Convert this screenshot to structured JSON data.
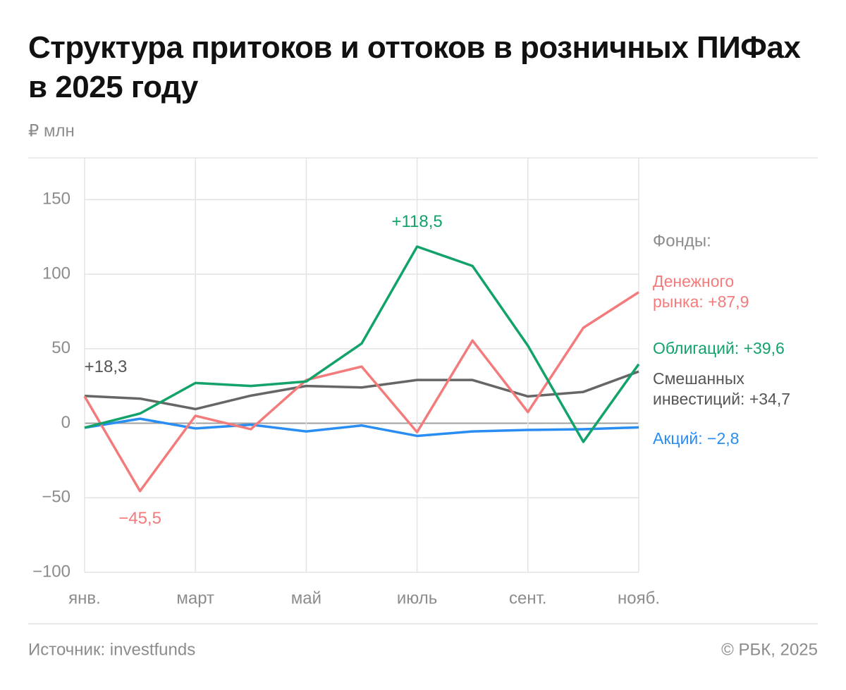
{
  "chart_data": {
    "type": "line",
    "title": "Структура притоков и оттоков в розничных ПИФах в 2025 году",
    "y_label": "₽ млн",
    "source": "Источник: investfunds",
    "copyright": "© РБК, 2025",
    "legend_title": "Фонды:",
    "categories": [
      "янв.",
      null,
      "март",
      null,
      "май",
      null,
      "июль",
      null,
      "сент.",
      null,
      "нояб."
    ],
    "ylim": [
      -100,
      178
    ],
    "yticks": [
      {
        "value": -100,
        "label": "−100"
      },
      {
        "value": -50,
        "label": "−50"
      },
      0,
      50,
      100,
      150
    ],
    "grid": true,
    "series": [
      {
        "name": "Денежного\nрынка: +87,9",
        "color": "#f47b7b",
        "values": [
          18,
          -45.5,
          5,
          -4,
          29,
          38,
          -6,
          55.5,
          7.5,
          64,
          87.9
        ],
        "value_labels": [
          null,
          "−45,5",
          null,
          null,
          null,
          null,
          null,
          null,
          null,
          null,
          null
        ]
      },
      {
        "name": "Облигаций: +39,6",
        "color": "#12a26a",
        "values": [
          -3,
          6.5,
          27,
          25,
          28,
          53.5,
          118.5,
          105.5,
          52,
          -12.5,
          39.6
        ],
        "value_labels": [
          null,
          null,
          null,
          null,
          null,
          null,
          "+118,5",
          null,
          null,
          null,
          null
        ]
      },
      {
        "name": "Смешанных\nинвестиций: +34,7",
        "color": "#666666",
        "values": [
          18.3,
          16.5,
          9.5,
          18.5,
          25,
          24,
          29,
          29,
          18,
          21,
          34.7
        ],
        "value_labels": [
          "+18,3",
          null,
          null,
          null,
          null,
          null,
          null,
          null,
          null,
          null,
          null
        ]
      },
      {
        "name": "Акций: −2,8",
        "color": "#2a8df2",
        "values": [
          -3,
          3,
          -3.5,
          -1,
          -5.5,
          -1.5,
          -8.5,
          -5.5,
          -4.5,
          -4,
          -2.8
        ]
      }
    ]
  }
}
